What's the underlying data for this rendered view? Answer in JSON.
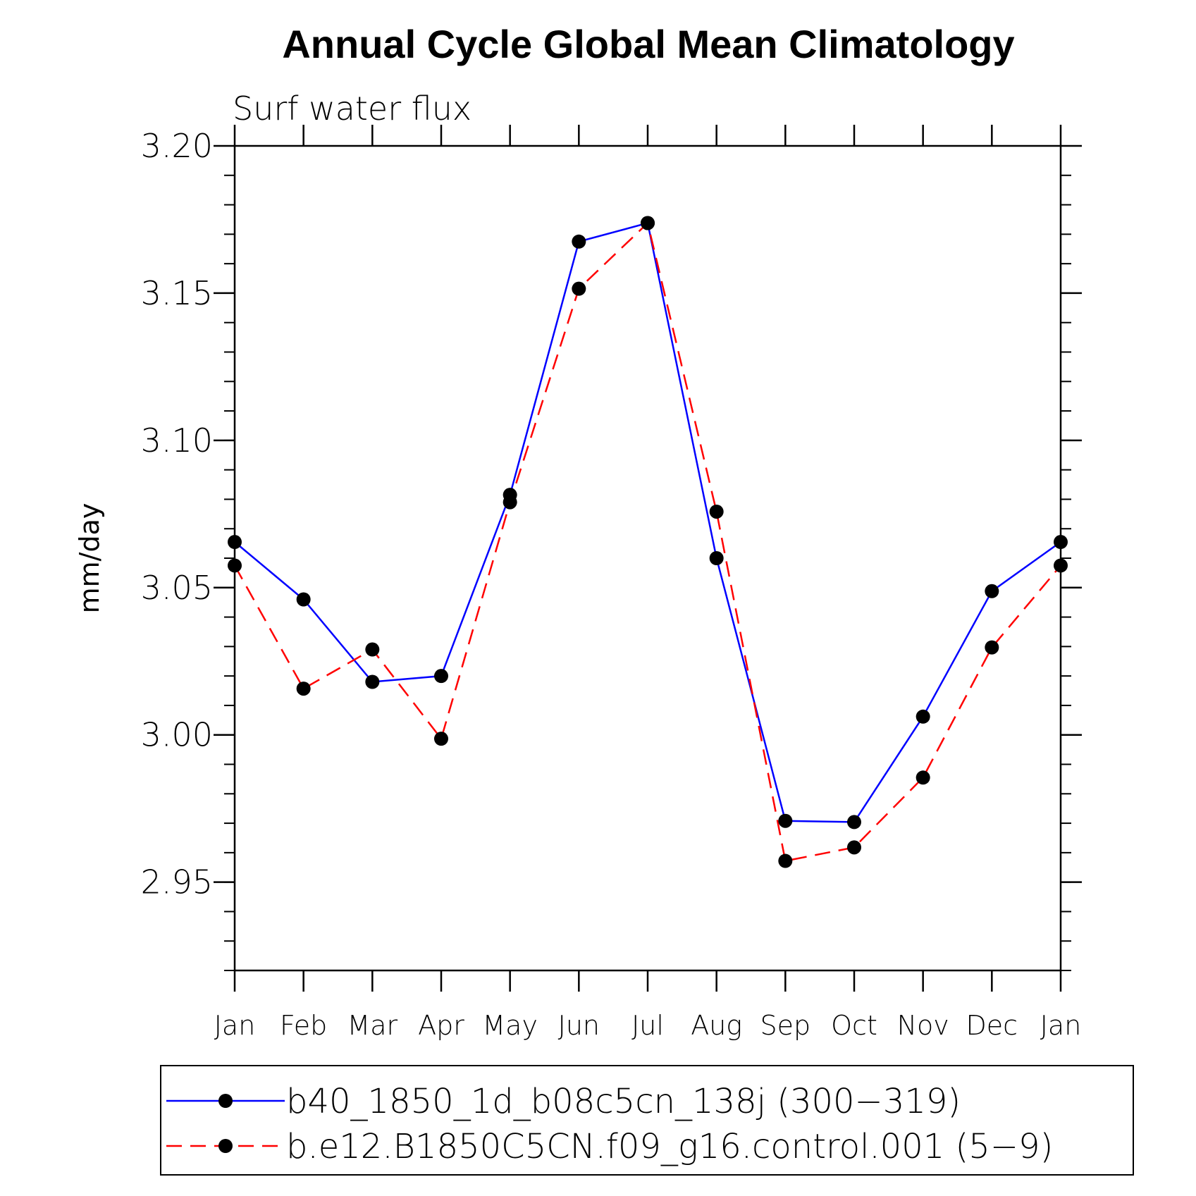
{
  "chart_data": {
    "type": "line",
    "title": "Annual Cycle Global Mean Climatology",
    "subtitle": "Surf water flux",
    "xlabel": "",
    "ylabel": "mm/day",
    "categories": [
      "Jan",
      "Feb",
      "Mar",
      "Apr",
      "May",
      "Jun",
      "Jul",
      "Aug",
      "Sep",
      "Oct",
      "Nov",
      "Dec",
      "Jan"
    ],
    "ylim": [
      2.92,
      3.2
    ],
    "yticks": [
      "2.95",
      "3.00",
      "3.05",
      "3.10",
      "3.15",
      "3.20"
    ],
    "grid": false,
    "legend_position": "bottom",
    "series": [
      {
        "name": "b40_1850_1d_b08c5cn_138j (300−319)",
        "color": "#0000ff",
        "dash": "solid",
        "marker": "filled-circle",
        "values": [
          3.0655,
          3.046,
          3.018,
          3.02,
          3.0815,
          3.1675,
          3.1738,
          3.06,
          2.9708,
          2.9704,
          3.0062,
          3.0488,
          3.0655
        ]
      },
      {
        "name": "b.e12.B1850C5CN.f09_g16.control.001 (5−9)",
        "color": "#ff0000",
        "dash": "dashed",
        "marker": "filled-circle",
        "values": [
          3.0575,
          3.0157,
          3.029,
          2.9987,
          3.079,
          3.1515,
          3.1738,
          3.0758,
          2.9572,
          2.9618,
          2.9855,
          3.0297,
          3.0575
        ]
      }
    ]
  }
}
